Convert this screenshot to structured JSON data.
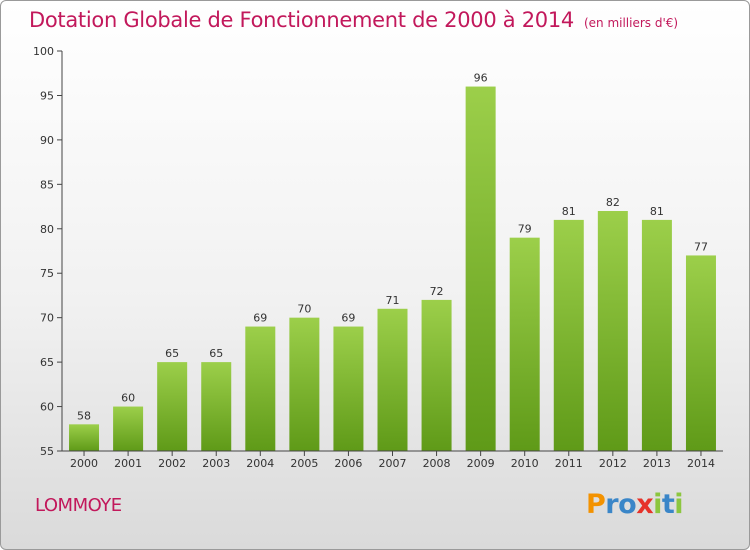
{
  "title": "Dotation Globale de Fonctionnement de 2000 à 2014",
  "subtitle": "(en milliers d'€)",
  "commune": "LOMMOYE",
  "logo": {
    "text": "Proxiti",
    "letters": [
      {
        "ch": "P",
        "color": "#f39200"
      },
      {
        "ch": "r",
        "color": "#3a86c8"
      },
      {
        "ch": "o",
        "color": "#3a86c8"
      },
      {
        "ch": "x",
        "color": "#e6332a"
      },
      {
        "ch": "i",
        "color": "#8cc63f"
      },
      {
        "ch": "t",
        "color": "#3a86c8"
      },
      {
        "ch": "i",
        "color": "#8cc63f"
      }
    ]
  },
  "chart_data": {
    "type": "bar",
    "categories": [
      "2000",
      "2001",
      "2002",
      "2003",
      "2004",
      "2005",
      "2006",
      "2007",
      "2008",
      "2009",
      "2010",
      "2011",
      "2012",
      "2013",
      "2014"
    ],
    "values": [
      58,
      60,
      65,
      65,
      69,
      70,
      69,
      71,
      72,
      96,
      79,
      81,
      82,
      81,
      77
    ],
    "ylim": [
      55,
      100
    ],
    "yticks": [
      55,
      60,
      65,
      70,
      75,
      80,
      85,
      90,
      95,
      100
    ],
    "grid": false,
    "data_labels": true,
    "bar_color_top": "#9ccf4a",
    "bar_color_bottom": "#5f9a18",
    "title_color": "#c2185b"
  }
}
